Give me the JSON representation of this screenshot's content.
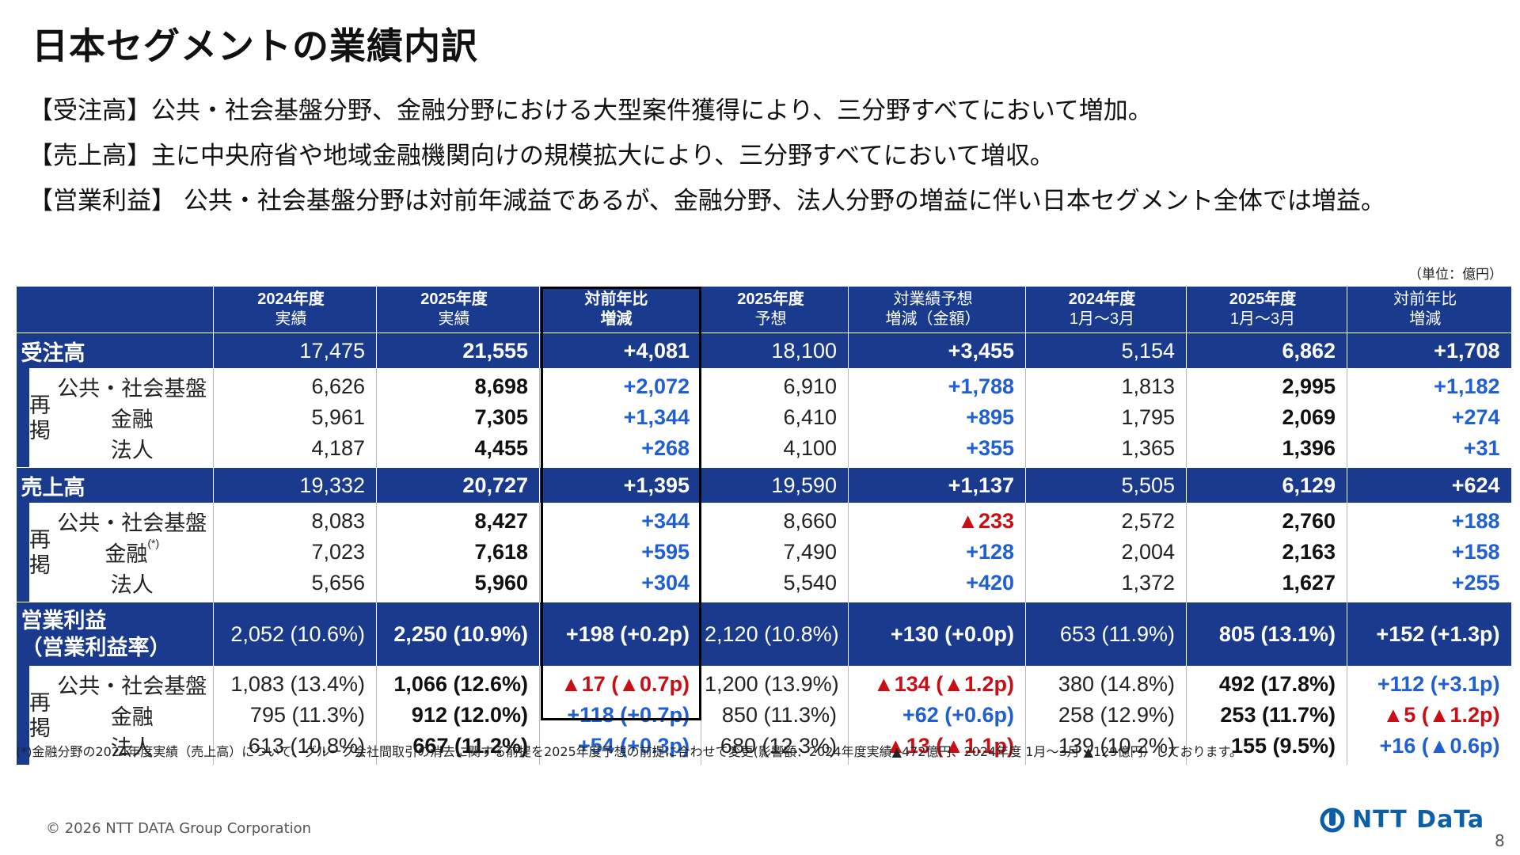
{
  "title": "日本セグメントの業績内訳",
  "bullets": [
    "【受注高】公共・社会基盤分野、金融分野における大型案件獲得により、三分野すべてにおいて増加。",
    "【売上高】主に中央府省や地域金融機関向けの規模拡大により、三分野すべてにおいて増収。",
    "【営業利益】 公共・社会基盤分野は対前年減益であるが、金融分野、法人分野の増益に伴い日本セグメント全体では増益。"
  ],
  "unit_note": "（単位：億円）",
  "headers": [
    {
      "line1": "2024年度",
      "line2": "実績"
    },
    {
      "line1": "2025年度",
      "line2": "実績"
    },
    {
      "line1": "対前年比",
      "line2": "増減"
    },
    {
      "line1": "2025年度",
      "line2": "予想"
    },
    {
      "line1": "対業績予想",
      "line2": "増減（金額）"
    },
    {
      "line1": "2024年度",
      "line2": "1月～3月"
    },
    {
      "line1": "2025年度",
      "line2": "1月～3月"
    },
    {
      "line1": "対前年比",
      "line2": "増減"
    }
  ],
  "saikei": "再掲",
  "orders": {
    "label": "受注高",
    "values": [
      "17,475",
      "21,555",
      "+4,081",
      "18,100",
      "+3,455",
      "5,154",
      "6,862",
      "+1,708"
    ],
    "rows": [
      {
        "label": "公共・社会基盤",
        "values": [
          "6,626",
          "8,698",
          "+2,072",
          "6,910",
          "+1,788",
          "1,813",
          "2,995",
          "+1,182"
        ]
      },
      {
        "label": "金融",
        "values": [
          "5,961",
          "7,305",
          "+1,344",
          "6,410",
          "+895",
          "1,795",
          "2,069",
          "+274"
        ]
      },
      {
        "label": "法人",
        "values": [
          "4,187",
          "4,455",
          "+268",
          "4,100",
          "+355",
          "1,365",
          "1,396",
          "+31"
        ]
      }
    ]
  },
  "sales": {
    "label": "売上高",
    "values": [
      "19,332",
      "20,727",
      "+1,395",
      "19,590",
      "+1,137",
      "5,505",
      "6,129",
      "+624"
    ],
    "rows": [
      {
        "label": "公共・社会基盤",
        "values": [
          "8,083",
          "8,427",
          "+344",
          "8,660",
          "▲233",
          "2,572",
          "2,760",
          "+188"
        ]
      },
      {
        "label": "金融",
        "sup": "(*)",
        "values": [
          "7,023",
          "7,618",
          "+595",
          "7,490",
          "+128",
          "2,004",
          "2,163",
          "+158"
        ]
      },
      {
        "label": "法人",
        "values": [
          "5,656",
          "5,960",
          "+304",
          "5,540",
          "+420",
          "1,372",
          "1,627",
          "+255"
        ]
      }
    ]
  },
  "op": {
    "label1": "営業利益",
    "label2": "（営業利益率）",
    "values": [
      "2,052 (10.6%)",
      "2,250 (10.9%)",
      "+198 (+0.2p)",
      "2,120 (10.8%)",
      "+130 (+0.0p)",
      "653 (11.9%)",
      "805 (13.1%)",
      "+152 (+1.3p)"
    ],
    "rows": [
      {
        "label": "公共・社会基盤",
        "values": [
          "1,083 (13.4%)",
          "1,066 (12.6%)",
          "▲17 (▲0.7p)",
          "1,200 (13.9%)",
          "▲134 (▲1.2p)",
          "380 (14.8%)",
          "492 (17.8%)",
          "+112 (+3.1p)"
        ]
      },
      {
        "label": "金融",
        "values": [
          "795 (11.3%)",
          "912 (12.0%)",
          "+118 (+0.7p)",
          "850 (11.3%)",
          "+62 (+0.6p)",
          "258 (12.9%)",
          "253 (11.7%)",
          "▲5 (▲1.2p)"
        ]
      },
      {
        "label": "法人",
        "values": [
          "613 (10.8%)",
          "667 (11.2%)",
          "+54 (+0.3p)",
          "680 (12.3%)",
          "▲13 (▲1.1p)",
          "139 (10.2%)",
          "155 (9.5%)",
          "+16 (▲0.6p)"
        ]
      }
    ]
  },
  "footnote": "(*)金融分野の2024年度実績（売上高）について、グループ会社間取引の消去に関する前提を2025年度予想の前提に合わせて変更(影響額：2024年度実績▲472億円、2024年度 1月～3月 ▲129億円）しております。",
  "copyright": "© 2026 NTT DATA Group Corporation",
  "logo_text": "NTT DaTa",
  "page_number": "8",
  "colors": {
    "header_blue": "#1a3a8e",
    "positive": "#1f5fd1",
    "negative": "#c80f16",
    "logo": "#0b5fa8"
  }
}
